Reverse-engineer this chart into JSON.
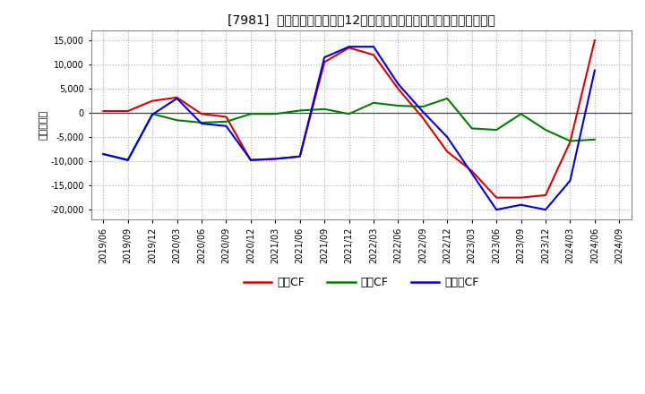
{
  "title": "[7981]  キャッシュフローの12か月移動合計の対前年同期増減額の推移",
  "ylabel": "（百万円）",
  "background_color": "#ffffff",
  "grid_color": "#aaaaaa",
  "ylim": [
    -22000,
    17000
  ],
  "yticks": [
    -20000,
    -15000,
    -10000,
    -5000,
    0,
    5000,
    10000,
    15000
  ],
  "series": {
    "営業CF": {
      "color": "#dd0000",
      "dates": [
        "2019/06",
        "2019/09",
        "2019/12",
        "2020/03",
        "2020/06",
        "2020/09",
        "2020/12",
        "2021/03",
        "2021/06",
        "2021/09",
        "2021/12",
        "2022/03",
        "2022/06",
        "2022/09",
        "2022/12",
        "2023/03",
        "2023/06",
        "2023/09",
        "2023/12",
        "2024/03",
        "2024/06"
      ],
      "values": [
        400,
        400,
        2500,
        3200,
        -200,
        -800,
        -9800,
        -9500,
        -9000,
        10500,
        13500,
        12000,
        5000,
        -1000,
        -8000,
        -12000,
        -17500,
        -17500,
        -17000,
        -6000,
        15000
      ]
    },
    "投資CF": {
      "color": "#008000",
      "dates": [
        "2019/06",
        "2019/09",
        "2019/12",
        "2020/03",
        "2020/06",
        "2020/09",
        "2020/12",
        "2021/03",
        "2021/06",
        "2021/09",
        "2021/12",
        "2022/03",
        "2022/06",
        "2022/09",
        "2022/12",
        "2023/03",
        "2023/06",
        "2023/09",
        "2023/12",
        "2024/03",
        "2024/06"
      ],
      "values": [
        -8500,
        -9800,
        -200,
        -1500,
        -2000,
        -1800,
        -200,
        -200,
        500,
        800,
        -200,
        2100,
        1500,
        1300,
        3000,
        -3200,
        -3500,
        -200,
        -3500,
        -5800,
        -5500
      ]
    },
    "フリーCF": {
      "color": "#0000dd",
      "dates": [
        "2019/06",
        "2019/09",
        "2019/12",
        "2020/03",
        "2020/06",
        "2020/09",
        "2020/12",
        "2021/03",
        "2021/06",
        "2021/09",
        "2021/12",
        "2022/03",
        "2022/06",
        "2022/09",
        "2022/12",
        "2023/03",
        "2023/06",
        "2023/09",
        "2023/12",
        "2024/03",
        "2024/06"
      ],
      "values": [
        -8500,
        -9700,
        -300,
        3000,
        -2200,
        -2700,
        -9700,
        -9500,
        -9000,
        11500,
        13700,
        13700,
        6000,
        300,
        -5000,
        -12500,
        -20000,
        -19000,
        -20000,
        -14000,
        8800
      ]
    }
  },
  "legend_labels": [
    "営業CF",
    "投資CF",
    "フリーCF"
  ],
  "legend_colors": [
    "#dd0000",
    "#008000",
    "#0000dd"
  ],
  "xtick_labels": [
    "2019/06",
    "2019/09",
    "2019/12",
    "2020/03",
    "2020/06",
    "2020/09",
    "2020/12",
    "2021/03",
    "2021/06",
    "2021/09",
    "2021/12",
    "2022/03",
    "2022/06",
    "2022/09",
    "2022/12",
    "2023/03",
    "2023/06",
    "2023/09",
    "2023/12",
    "2024/03",
    "2024/06",
    "2024/09"
  ]
}
